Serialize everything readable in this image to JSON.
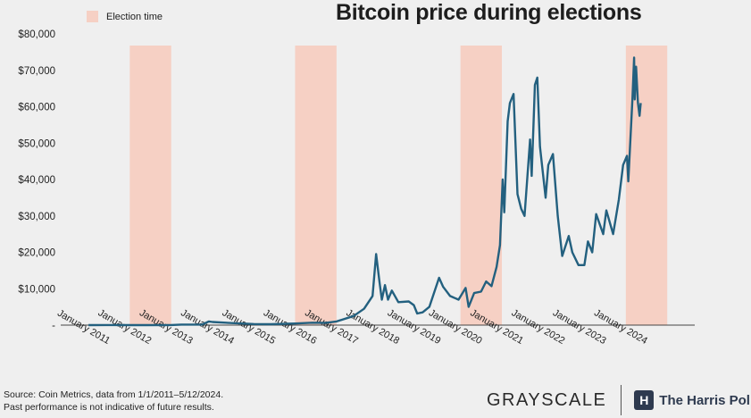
{
  "title": "Bitcoin price during elections",
  "legend": {
    "label": "Election time",
    "color": "#f6d0c4"
  },
  "footer": {
    "source_line1": "Source: Coin Metrics, data from 1/1/2011–5/12/2024.",
    "source_line2": "Past performance is not indicative of future results.",
    "logo1": "GRAYSCALE",
    "logo2": "The Harris Poll",
    "logo2_mark": "H"
  },
  "colors": {
    "line": "#23607f",
    "election": "#f6d0c4",
    "axis": "#444444"
  },
  "chart_data": {
    "type": "line",
    "title": "Bitcoin price during elections",
    "xlabel": "",
    "ylabel": "",
    "grid": false,
    "legend_position": "top-left",
    "ylim": [
      0,
      80000
    ],
    "xlim": [
      "2010-05-01",
      "2025-09-01"
    ],
    "y_ticks": [
      0,
      10000,
      20000,
      30000,
      40000,
      50000,
      60000,
      70000,
      80000
    ],
    "y_tick_labels": [
      "-",
      "$10,000",
      "$20,000",
      "$30,000",
      "$40,000",
      "$50,000",
      "$60,000",
      "$70,000",
      "$80,000"
    ],
    "x_ticks": [
      "2011-01-01",
      "2012-01-01",
      "2013-01-01",
      "2014-01-01",
      "2015-01-01",
      "2016-01-01",
      "2017-01-01",
      "2018-01-01",
      "2019-01-01",
      "2020-01-01",
      "2021-01-01",
      "2022-01-01",
      "2023-01-01",
      "2024-01-01"
    ],
    "x_tick_labels": [
      "January 2011",
      "January 2012",
      "January 2013",
      "January 2014",
      "January 2015",
      "January 2016",
      "January 2017",
      "January 2018",
      "January 2019",
      "January 2020",
      "January 2021",
      "January 2022",
      "January 2023",
      "January 2024"
    ],
    "election_periods": [
      {
        "label": "Election time",
        "start": "2012-01-01",
        "end": "2013-01-01"
      },
      {
        "label": "Election time",
        "start": "2016-01-01",
        "end": "2017-01-01"
      },
      {
        "label": "Election time",
        "start": "2020-01-01",
        "end": "2021-01-01"
      },
      {
        "label": "Election time",
        "start": "2024-01-01",
        "end": "2025-01-01"
      }
    ],
    "series": [
      {
        "name": "Bitcoin price",
        "points": [
          [
            "2011-01-01",
            0
          ],
          [
            "2011-06-01",
            30
          ],
          [
            "2012-01-01",
            5
          ],
          [
            "2012-06-01",
            6
          ],
          [
            "2013-01-01",
            13
          ],
          [
            "2013-04-01",
            140
          ],
          [
            "2013-10-01",
            150
          ],
          [
            "2013-12-01",
            1000
          ],
          [
            "2014-01-01",
            850
          ],
          [
            "2014-06-01",
            600
          ],
          [
            "2015-01-01",
            300
          ],
          [
            "2015-06-01",
            240
          ],
          [
            "2016-01-01",
            430
          ],
          [
            "2016-06-01",
            670
          ],
          [
            "2016-10-01",
            650
          ],
          [
            "2017-01-01",
            1000
          ],
          [
            "2017-06-01",
            2500
          ],
          [
            "2017-09-01",
            4500
          ],
          [
            "2017-11-15",
            8000
          ],
          [
            "2017-12-17",
            19500
          ],
          [
            "2018-01-15",
            12000
          ],
          [
            "2018-02-05",
            7000
          ],
          [
            "2018-03-05",
            11000
          ],
          [
            "2018-04-01",
            7000
          ],
          [
            "2018-05-05",
            9500
          ],
          [
            "2018-07-01",
            6300
          ],
          [
            "2018-10-01",
            6500
          ],
          [
            "2018-11-15",
            5500
          ],
          [
            "2018-12-15",
            3200
          ],
          [
            "2019-02-01",
            3500
          ],
          [
            "2019-04-01",
            5000
          ],
          [
            "2019-06-26",
            13000
          ],
          [
            "2019-08-01",
            10500
          ],
          [
            "2019-10-01",
            8000
          ],
          [
            "2019-12-15",
            7000
          ],
          [
            "2020-02-15",
            10200
          ],
          [
            "2020-03-13",
            5000
          ],
          [
            "2020-05-01",
            8800
          ],
          [
            "2020-07-01",
            9200
          ],
          [
            "2020-08-15",
            12000
          ],
          [
            "2020-10-01",
            10700
          ],
          [
            "2020-11-15",
            16000
          ],
          [
            "2020-12-15",
            22000
          ],
          [
            "2021-01-08",
            40000
          ],
          [
            "2021-01-22",
            31000
          ],
          [
            "2021-02-21",
            56000
          ],
          [
            "2021-03-13",
            61000
          ],
          [
            "2021-04-14",
            63500
          ],
          [
            "2021-05-19",
            36000
          ],
          [
            "2021-06-20",
            32000
          ],
          [
            "2021-07-20",
            30000
          ],
          [
            "2021-09-07",
            51000
          ],
          [
            "2021-09-21",
            41000
          ],
          [
            "2021-10-20",
            66000
          ],
          [
            "2021-11-10",
            68000
          ],
          [
            "2021-12-04",
            49000
          ],
          [
            "2022-01-22",
            35000
          ],
          [
            "2022-02-15",
            44000
          ],
          [
            "2022-03-28",
            47000
          ],
          [
            "2022-05-10",
            30000
          ],
          [
            "2022-06-18",
            19000
          ],
          [
            "2022-08-15",
            24500
          ],
          [
            "2022-09-15",
            20000
          ],
          [
            "2022-11-09",
            16500
          ],
          [
            "2022-12-31",
            16500
          ],
          [
            "2023-01-31",
            23000
          ],
          [
            "2023-03-10",
            20000
          ],
          [
            "2023-04-14",
            30500
          ],
          [
            "2023-06-15",
            25000
          ],
          [
            "2023-07-13",
            31500
          ],
          [
            "2023-09-11",
            25000
          ],
          [
            "2023-10-31",
            34500
          ],
          [
            "2023-12-08",
            44000
          ],
          [
            "2024-01-11",
            46500
          ],
          [
            "2024-01-23",
            39500
          ],
          [
            "2024-02-28",
            62000
          ],
          [
            "2024-03-14",
            73500
          ],
          [
            "2024-03-20",
            62000
          ],
          [
            "2024-04-01",
            71000
          ],
          [
            "2024-04-17",
            61000
          ],
          [
            "2024-05-01",
            57500
          ],
          [
            "2024-05-12",
            61000
          ]
        ]
      }
    ]
  }
}
